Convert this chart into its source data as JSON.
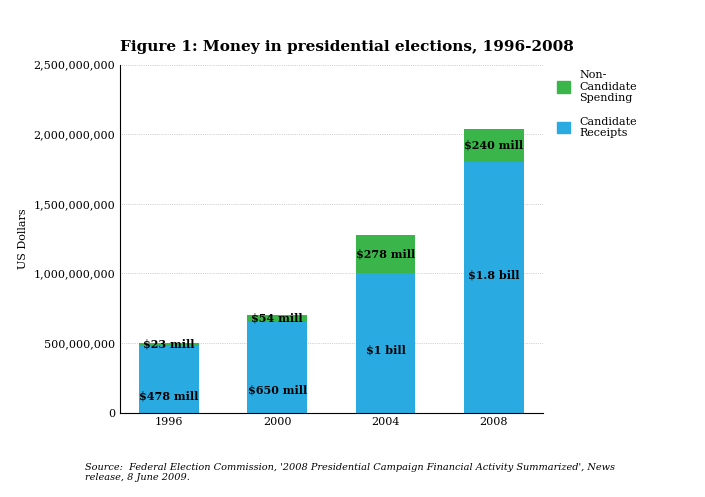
{
  "title": "Figure 1: Money in presidential elections, 1996-2008",
  "years": [
    "1996",
    "2000",
    "2004",
    "2008"
  ],
  "candidate_receipts": [
    478000000,
    650000000,
    1000000000,
    1800000000
  ],
  "non_candidate_spending": [
    23000000,
    54000000,
    278000000,
    240000000
  ],
  "candidate_labels": [
    "$478 mill",
    "$650 mill",
    "$1 bill",
    "$1.8 bill"
  ],
  "non_candidate_labels": [
    "$23 mill",
    "$54 mill",
    "$278 mill",
    "$240 mill"
  ],
  "bar_color_candidate": "#29ABE2",
  "bar_color_non_candidate": "#39B54A",
  "ylabel": "US Dollars",
  "ylim": [
    0,
    2500000000
  ],
  "yticks": [
    0,
    500000000,
    1000000000,
    1500000000,
    2000000000,
    2500000000
  ],
  "legend_label_non": "Non-\nCandidate\nSpending",
  "legend_label_cand": "Candidate\nReceipts",
  "source_text_italic": "Source: ",
  "source_text_normal": " Federal Election Commission, '2008 Presidential Campaign Financial Activity Summarized', News\nrelease, 8 June 2009.",
  "background_color": "#FFFFFF",
  "title_fontsize": 11,
  "label_fontsize": 8,
  "tick_fontsize": 8,
  "bar_width": 0.55
}
